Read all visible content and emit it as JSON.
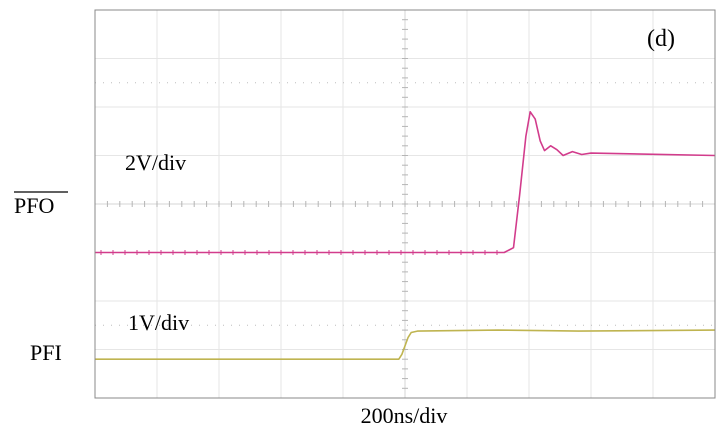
{
  "chart_data": {
    "type": "line",
    "panel_label": "(d)",
    "x_axis_label": "200ns/div",
    "divisions": {
      "x": 10,
      "y": 8
    },
    "minor_ticks_per_division": 5,
    "grid": true,
    "colors": {
      "grid": "#e6e6e6",
      "axis": "#d6d6d6",
      "frame": "#888888",
      "pfo": "#d23c8c",
      "pfi": "#bfb450"
    },
    "series": [
      {
        "name": "PFO",
        "overline": true,
        "scale_label": "2V/div",
        "reference_level_div": 3,
        "x_div": [
          0,
          6.6,
          6.75,
          6.85,
          6.95,
          7.02,
          7.1,
          7.18,
          7.25,
          7.35,
          7.45,
          7.55,
          7.7,
          7.85,
          8.0,
          10.0
        ],
        "y_div": [
          0,
          0,
          0.1,
          1.2,
          2.4,
          2.9,
          2.75,
          2.3,
          2.1,
          2.2,
          2.12,
          2.0,
          2.08,
          2.02,
          2.05,
          2.0
        ],
        "marker": "+"
      },
      {
        "name": "PFI",
        "overline": false,
        "scale_label": "1V/div",
        "reference_level_div": 0.8,
        "x_div": [
          0,
          4.9,
          4.95,
          5.05,
          5.1,
          5.2,
          6.5,
          7.8,
          10.0
        ],
        "y_div": [
          0,
          0,
          0.1,
          0.45,
          0.55,
          0.58,
          0.6,
          0.58,
          0.6
        ]
      }
    ]
  }
}
